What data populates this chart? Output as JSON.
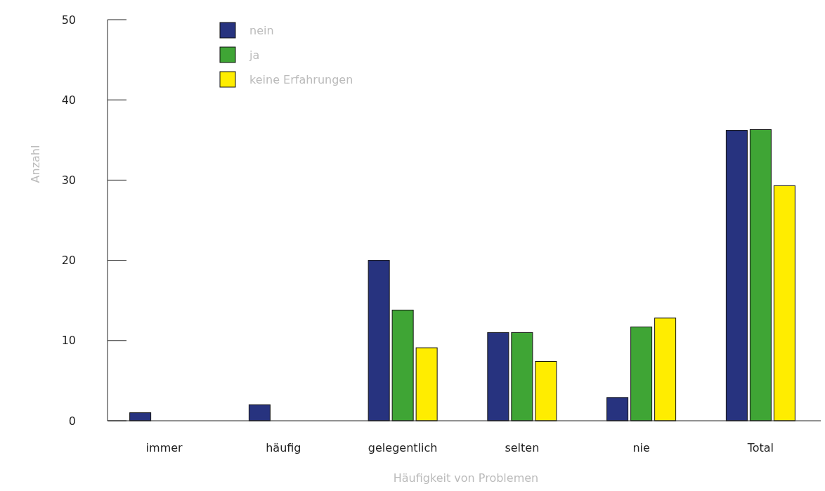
{
  "chart_data": {
    "type": "bar",
    "xlabel": "Häufigkeit von Problemen",
    "ylabel": "Anzahl",
    "categories": [
      "immer",
      "häufig",
      "gelegentlich",
      "selten",
      "nie",
      "Total"
    ],
    "series": [
      {
        "name": "nein",
        "color": "#27337f",
        "values": [
          1,
          2,
          20,
          11,
          2.9,
          36.2
        ]
      },
      {
        "name": "ja",
        "color": "#3fa535",
        "values": [
          null,
          null,
          13.8,
          11,
          11.7,
          36.3
        ]
      },
      {
        "name": "keine Erfahrungen",
        "color": "#ffed00",
        "values": [
          null,
          null,
          9.1,
          7.4,
          12.8,
          29.3
        ]
      }
    ],
    "ylim": [
      0,
      50
    ],
    "yticks": [
      0,
      10,
      20,
      30,
      40,
      50
    ],
    "grid": false,
    "legend": "top left"
  }
}
